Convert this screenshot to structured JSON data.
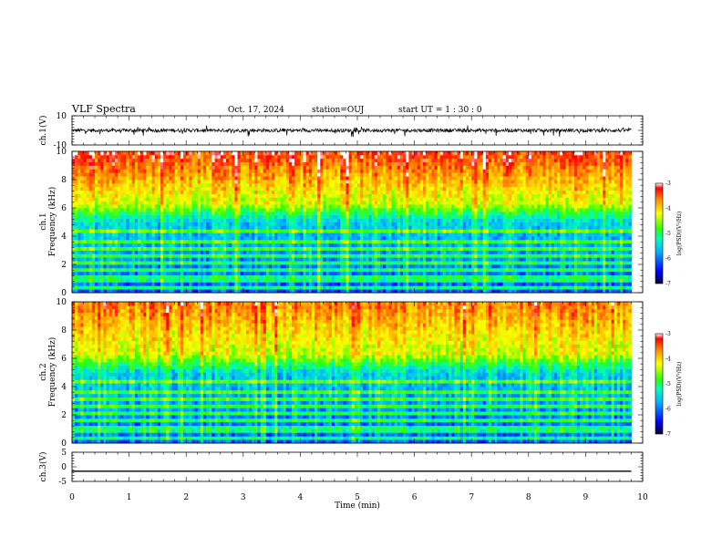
{
  "header": {
    "title": "VLF Spectra",
    "date": "Oct. 17, 2024",
    "station": "station=OUJ",
    "start_ut": "start  UT =   1 : 30 : 0"
  },
  "chart_data": [
    {
      "type": "line",
      "name": "ch1-waveform",
      "ylabel": "ch.1(V)",
      "ylim": [
        -10,
        10
      ],
      "yticks": [
        "10",
        "-10"
      ],
      "xlim": [
        0,
        10
      ],
      "baseline": 0,
      "amplitude_typical": 3,
      "data_end": 9.8
    },
    {
      "type": "heatmap",
      "name": "ch1-spectrogram",
      "ylabel": "ch.1\nFrequency  (kHz)",
      "ylim": [
        0,
        10
      ],
      "yticks": [
        "0",
        "2",
        "4",
        "6",
        "8",
        "10"
      ],
      "xlim": [
        0,
        10
      ],
      "data_end": 9.8,
      "colorbar": {
        "label": "log(PSD)(V²/Hz)",
        "range": [
          -7,
          -3
        ],
        "ticks": [
          "-3",
          "-4",
          "-5",
          "-6",
          "-7"
        ]
      }
    },
    {
      "type": "heatmap",
      "name": "ch2-spectrogram",
      "ylabel": "ch.2\nFrequency  (kHz)",
      "ylim": [
        0,
        10
      ],
      "yticks": [
        "0",
        "2",
        "4",
        "6",
        "8",
        "10"
      ],
      "xlim": [
        0,
        10
      ],
      "data_end": 9.8,
      "colorbar": {
        "label": "log(PSD)(V²/Hz)",
        "range": [
          -7,
          -3
        ],
        "ticks": [
          "-3",
          "-4",
          "-5",
          "-6",
          "-7"
        ]
      }
    },
    {
      "type": "line",
      "name": "ch3-waveform",
      "ylabel": "ch.3(V)",
      "ylim": [
        -5,
        5
      ],
      "yticks": [
        "5",
        "0",
        "-5"
      ],
      "xlim": [
        0,
        10
      ],
      "value": -1.5,
      "xlabel": "Time  (min)",
      "xticks": [
        "0",
        "1",
        "2",
        "3",
        "4",
        "5",
        "6",
        "7",
        "8",
        "9",
        "10"
      ]
    }
  ]
}
